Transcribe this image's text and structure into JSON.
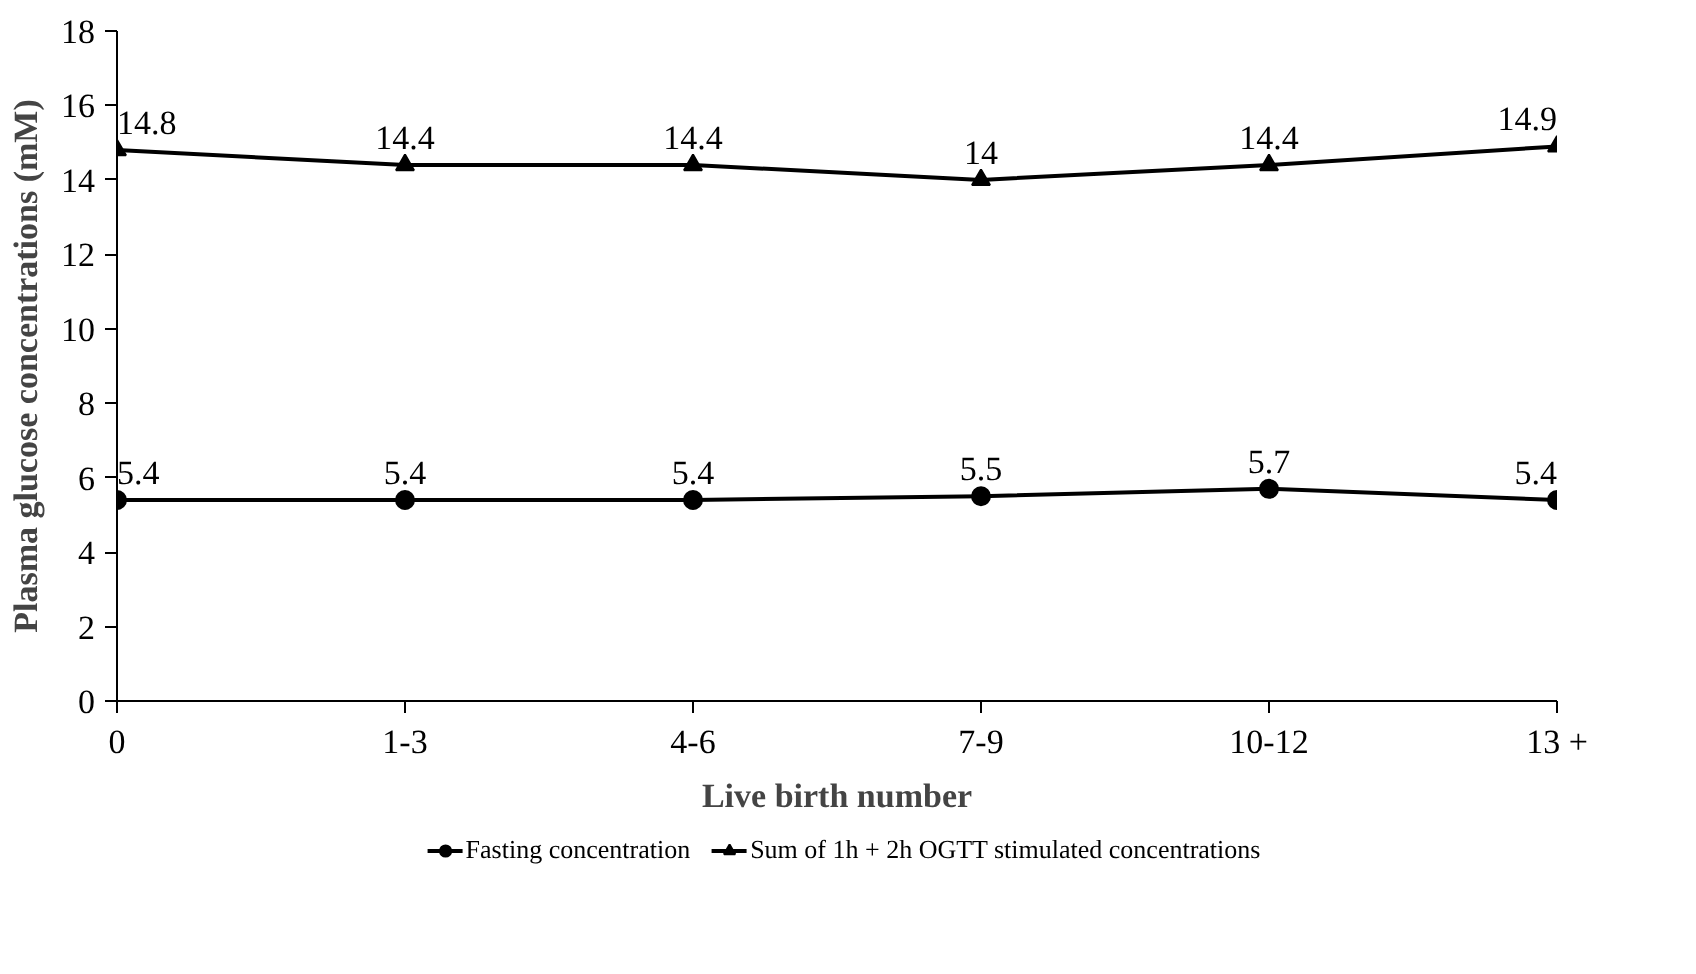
{
  "chart_data": {
    "type": "line",
    "xlabel": "Live birth number",
    "ylabel": "Plasma glucose concentrations (mM)",
    "categories": [
      "0",
      "1-3",
      "4-6",
      "7-9",
      "10-12",
      "13 +"
    ],
    "series": [
      {
        "name": "Fasting concentration",
        "color": "#000000",
        "marker": "circle",
        "values": [
          5.4,
          5.4,
          5.4,
          5.5,
          5.7,
          5.4
        ]
      },
      {
        "name": "Sum of 1h + 2h OGTT stimulated concentrations",
        "color": "#000000",
        "marker": "triangle",
        "values": [
          14.8,
          14.4,
          14.4,
          14,
          14.4,
          14.9
        ]
      }
    ],
    "ylim": [
      0,
      18
    ],
    "yticks": [
      0,
      2,
      4,
      6,
      8,
      10,
      12,
      14,
      16,
      18
    ],
    "data_labels": true,
    "legend": "bottom",
    "grid": false,
    "line_style": "solid"
  }
}
